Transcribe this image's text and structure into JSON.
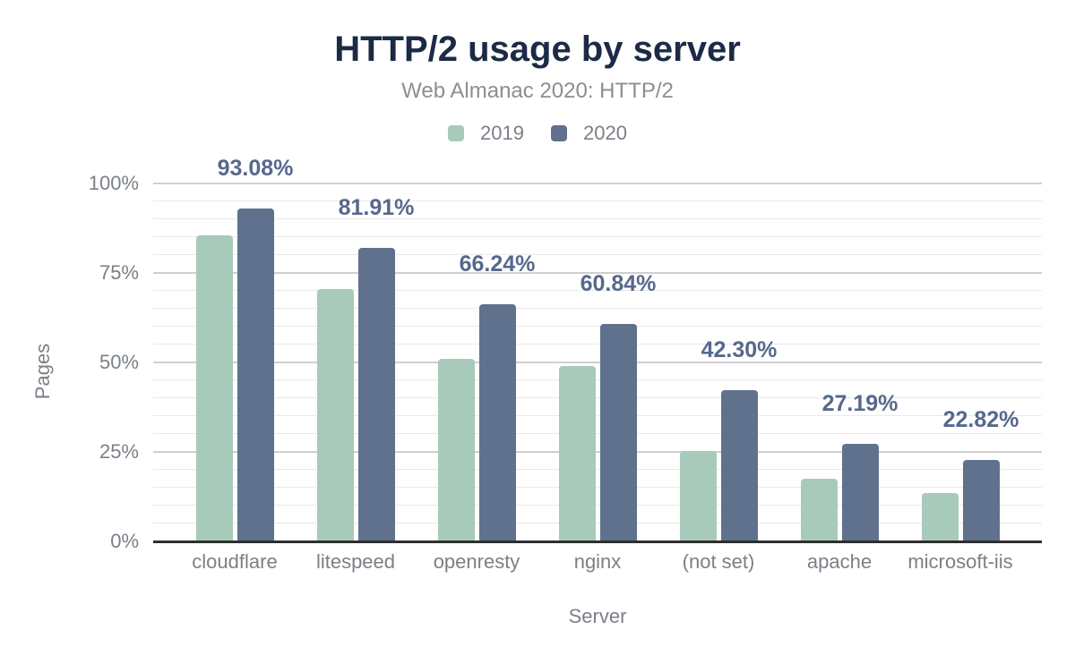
{
  "chart_data": {
    "type": "bar",
    "title": "HTTP/2 usage by server",
    "subtitle": "Web Almanac 2020: HTTP/2",
    "xlabel": "Server",
    "ylabel": "Pages",
    "categories": [
      "cloudflare",
      "litespeed",
      "openresty",
      "nginx",
      "(not set)",
      "apache",
      "microsoft-iis"
    ],
    "series": [
      {
        "name": "2019",
        "color": "#a8cabb",
        "values": [
          85.5,
          70.5,
          51.0,
          49.0,
          25.3,
          17.5,
          13.5
        ]
      },
      {
        "name": "2020",
        "color": "#5f718d",
        "values": [
          93.08,
          81.91,
          66.24,
          60.84,
          42.3,
          27.19,
          22.82
        ],
        "data_labels": [
          "93.08%",
          "81.91%",
          "66.24%",
          "60.84%",
          "42.30%",
          "27.19%",
          "22.82%"
        ]
      }
    ],
    "ylim": [
      0,
      100
    ],
    "yticks": [
      {
        "value": 0,
        "label": "0%"
      },
      {
        "value": 25,
        "label": "25%"
      },
      {
        "value": 50,
        "label": "50%"
      },
      {
        "value": 75,
        "label": "75%"
      },
      {
        "value": 100,
        "label": "100%"
      }
    ],
    "grid": {
      "on": true,
      "minor_step": 5,
      "major_step": 25,
      "minor_color": "#e9e9e9",
      "major_color": "#cfcfcf"
    },
    "legend_position": "top"
  },
  "colors": {
    "background": "#ffffff",
    "title_text": "#1c2b45",
    "subtitle_text": "#8b8e92",
    "axis_text": "#7b8087",
    "data_label_text": "#56688c",
    "series_2019": "#a8cabb",
    "series_2020": "#5f718d",
    "axis_line": "#2e2e2e"
  }
}
